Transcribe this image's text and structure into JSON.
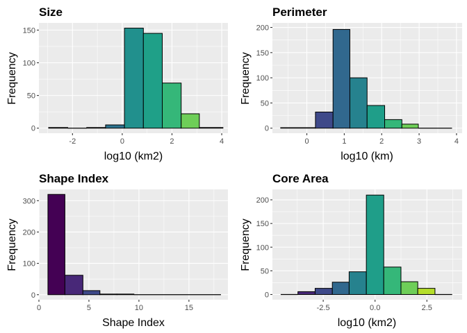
{
  "chart_data": [
    {
      "type": "bar",
      "title": "Size",
      "xlabel": "log10 (km2)",
      "ylabel": "Frequency",
      "xlim": [
        -3.35,
        4.25
      ],
      "ylim": [
        -7.7,
        161
      ],
      "x_ticks": [
        -2,
        0,
        2,
        4
      ],
      "x_tick_labels": [
        "-2",
        "0",
        "2",
        "4"
      ],
      "y_ticks": [
        0,
        50,
        100,
        150
      ],
      "y_tick_labels": [
        "0",
        "50",
        "100",
        "150"
      ],
      "grid": true,
      "bins": [
        {
          "x0": -2.96,
          "x1": -2.19,
          "count": 1,
          "color": "#440154"
        },
        {
          "x0": -2.19,
          "x1": -1.43,
          "count": 0,
          "color": "#472d7b"
        },
        {
          "x0": -1.43,
          "x1": -0.67,
          "count": 1,
          "color": "#3b528b"
        },
        {
          "x0": -0.67,
          "x1": 0.09,
          "count": 5,
          "color": "#2c728e"
        },
        {
          "x0": 0.09,
          "x1": 0.85,
          "count": 153,
          "color": "#21908d"
        },
        {
          "x0": 0.85,
          "x1": 1.61,
          "count": 145,
          "color": "#1fa088"
        },
        {
          "x0": 1.61,
          "x1": 2.37,
          "count": 69,
          "color": "#35b779"
        },
        {
          "x0": 2.37,
          "x1": 3.1,
          "count": 22,
          "color": "#6ece58"
        },
        {
          "x0": 3.1,
          "x1": 4.05,
          "count": 1,
          "color": "#b5de2b"
        }
      ]
    },
    {
      "type": "bar",
      "title": "Perimeter",
      "xlabel": "log10 (km)",
      "ylabel": "Frequency",
      "xlim": [
        -0.92,
        4.15
      ],
      "ylim": [
        -10,
        209
      ],
      "x_ticks": [
        0,
        1,
        2,
        3,
        4
      ],
      "x_tick_labels": [
        "0",
        "1",
        "2",
        "3",
        "4"
      ],
      "y_ticks": [
        0,
        50,
        100,
        150,
        200
      ],
      "y_tick_labels": [
        "0",
        "50",
        "100",
        "150",
        "200"
      ],
      "grid": true,
      "bins": [
        {
          "x0": -0.7,
          "x1": 0.23,
          "count": 1,
          "color": "#440154"
        },
        {
          "x0": 0.23,
          "x1": 0.7,
          "count": 32,
          "color": "#3e4989"
        },
        {
          "x0": 0.7,
          "x1": 1.15,
          "count": 196,
          "color": "#31688e"
        },
        {
          "x0": 1.15,
          "x1": 1.61,
          "count": 100,
          "color": "#26828e"
        },
        {
          "x0": 1.61,
          "x1": 2.08,
          "count": 45,
          "color": "#1f9e89"
        },
        {
          "x0": 2.08,
          "x1": 2.54,
          "count": 17,
          "color": "#35b779"
        },
        {
          "x0": 2.54,
          "x1": 2.98,
          "count": 8,
          "color": "#6ece58"
        },
        {
          "x0": 2.98,
          "x1": 3.88,
          "count": 0,
          "color": "#b5de2b"
        }
      ]
    },
    {
      "type": "bar",
      "title": "Shape Index",
      "xlabel": "Shape Index",
      "ylabel": "Frequency",
      "xlim": [
        0,
        18.9
      ],
      "ylim": [
        -16,
        336
      ],
      "x_ticks": [
        0,
        5,
        10,
        15
      ],
      "x_tick_labels": [
        "0",
        "5",
        "10",
        "15"
      ],
      "y_ticks": [
        0,
        100,
        200,
        300
      ],
      "y_tick_labels": [
        "0",
        "100",
        "200",
        "300"
      ],
      "grid": true,
      "bins": [
        {
          "x0": 0.9,
          "x1": 2.6,
          "count": 320,
          "color": "#440154"
        },
        {
          "x0": 2.6,
          "x1": 4.4,
          "count": 62,
          "color": "#482878"
        },
        {
          "x0": 4.4,
          "x1": 6.1,
          "count": 13,
          "color": "#3e4989"
        },
        {
          "x0": 6.1,
          "x1": 7.8,
          "count": 2,
          "color": "#31688e"
        },
        {
          "x0": 7.8,
          "x1": 9.5,
          "count": 2,
          "color": "#26828e"
        },
        {
          "x0": 9.5,
          "x1": 18.2,
          "count": 0,
          "color": "#1f9e89"
        }
      ]
    },
    {
      "type": "bar",
      "title": "Core Area",
      "xlabel": "log10 (km2)",
      "ylabel": "Frequency",
      "xlim": [
        -4.95,
        4.2
      ],
      "ylim": [
        -11,
        222
      ],
      "x_ticks": [
        -2.5,
        0.0,
        2.5
      ],
      "x_tick_labels": [
        "-2.5",
        "0.0",
        "2.5"
      ],
      "y_ticks": [
        0,
        50,
        100,
        150,
        200
      ],
      "y_tick_labels": [
        "0",
        "50",
        "100",
        "150",
        "200"
      ],
      "grid": true,
      "bins": [
        {
          "x0": -4.55,
          "x1": -3.72,
          "count": 0,
          "color": "#440154"
        },
        {
          "x0": -3.72,
          "x1": -2.89,
          "count": 6,
          "color": "#482878"
        },
        {
          "x0": -2.89,
          "x1": -2.06,
          "count": 13,
          "color": "#3e4989"
        },
        {
          "x0": -2.06,
          "x1": -1.25,
          "count": 26,
          "color": "#31688e"
        },
        {
          "x0": -1.25,
          "x1": -0.42,
          "count": 48,
          "color": "#26828e"
        },
        {
          "x0": -0.42,
          "x1": 0.42,
          "count": 210,
          "color": "#1f9e89"
        },
        {
          "x0": 0.42,
          "x1": 1.25,
          "count": 58,
          "color": "#35b779"
        },
        {
          "x0": 1.25,
          "x1": 2.06,
          "count": 27,
          "color": "#6ece58"
        },
        {
          "x0": 2.06,
          "x1": 2.89,
          "count": 13,
          "color": "#b5de2b"
        },
        {
          "x0": 2.89,
          "x1": 3.72,
          "count": 0,
          "color": "#fde725"
        }
      ]
    }
  ]
}
